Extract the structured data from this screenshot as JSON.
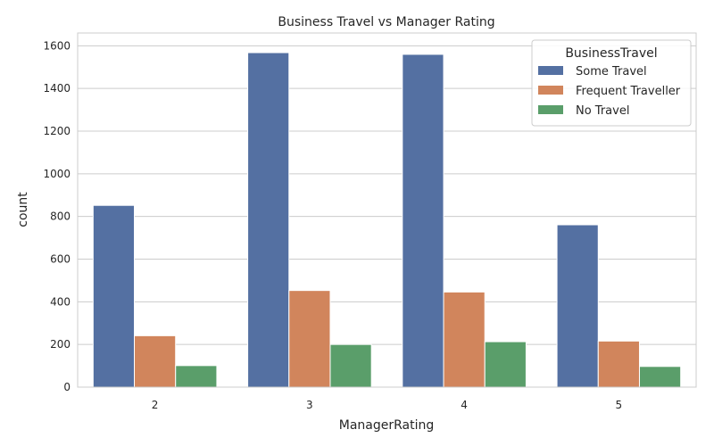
{
  "chart_data": {
    "type": "bar",
    "title": "Business Travel vs Manager Rating",
    "xlabel": "ManagerRating",
    "ylabel": "count",
    "categories": [
      "2",
      "3",
      "4",
      "5"
    ],
    "series": [
      {
        "name": "Some Travel",
        "values": [
          852,
          1568,
          1560,
          761
        ],
        "color": "#5470a2"
      },
      {
        "name": "Frequent Traveller",
        "values": [
          241,
          453,
          446,
          216
        ],
        "color": "#d1855c"
      },
      {
        "name": "No Travel",
        "values": [
          101,
          200,
          213,
          97
        ],
        "color": "#5a9e6a"
      }
    ],
    "ylim": [
      0,
      1660
    ],
    "yticks": [
      0,
      200,
      400,
      600,
      800,
      1000,
      1200,
      1400,
      1600
    ],
    "grid": true,
    "legend": {
      "title": "BusinessTravel",
      "placement": "top-right"
    }
  }
}
